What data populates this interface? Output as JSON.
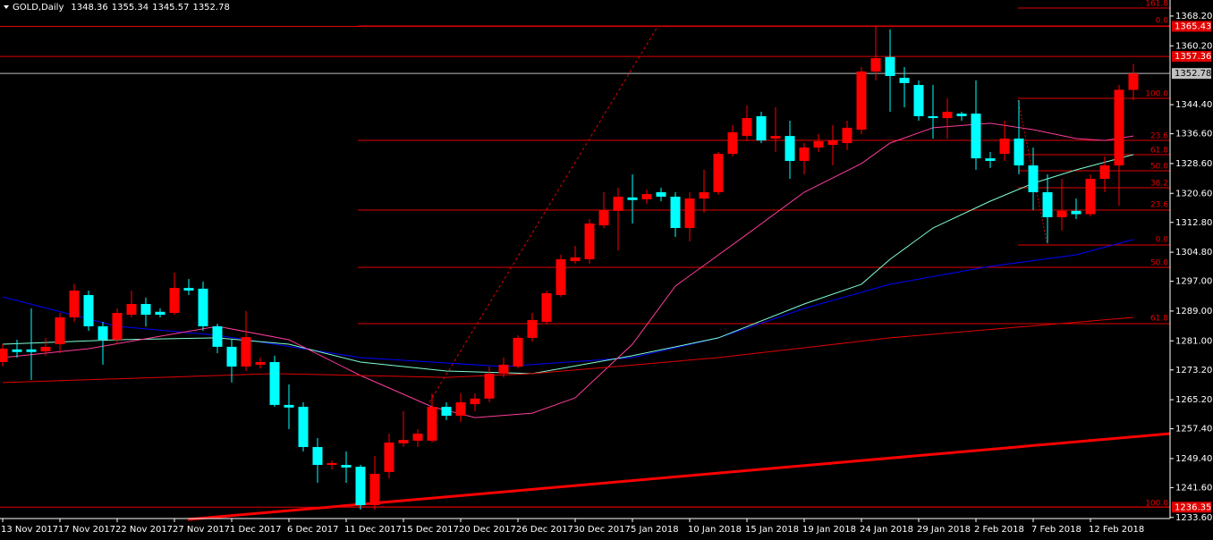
{
  "chart_data": {
    "type": "candlestick",
    "title": "GOLD,Daily",
    "categories": [
      "13 Nov 2017",
      null,
      null,
      null,
      "17 Nov 2017",
      null,
      null,
      null,
      "22 Nov 2017",
      null,
      null,
      null,
      "27 Nov 2017",
      null,
      null,
      null,
      "1 Dec 2017",
      null,
      null,
      null,
      "6 Dec 2017",
      null,
      null,
      null,
      "11 Dec 2017",
      null,
      null,
      null,
      "15 Dec 2017",
      null,
      null,
      null,
      "20 Dec 2017",
      null,
      null,
      null,
      "26 Dec 2017",
      null,
      null,
      null,
      "30 Dec 2017",
      null,
      null,
      null,
      "5 Jan 2018",
      null,
      null,
      null,
      "10 Jan 2018",
      null,
      null,
      null,
      "15 Jan 2018",
      null,
      null,
      null,
      "19 Jan 2018",
      null,
      null,
      null,
      "24 Jan 2018",
      null,
      null,
      null,
      "29 Jan 2018",
      null,
      null,
      null,
      "2 Feb 2018",
      null,
      null,
      null,
      "7 Feb 2018",
      null,
      null,
      null,
      "12 Feb 2018",
      null,
      null,
      null
    ],
    "candles": [
      [
        1275.3,
        1280.1,
        1274.1,
        1278.9
      ],
      [
        1278.7,
        1281.3,
        1276.5,
        1278.0
      ],
      [
        1278.7,
        1289.7,
        1270.5,
        1278.0
      ],
      [
        1278.2,
        1281.8,
        1277.0,
        1279.4
      ],
      [
        1280.1,
        1288.5,
        1277.7,
        1287.3
      ],
      [
        1287.3,
        1296.2,
        1286.1,
        1294.5
      ],
      [
        1293.3,
        1294.5,
        1283.7,
        1284.9
      ],
      [
        1284.9,
        1286.1,
        1274.6,
        1281.3
      ],
      [
        1281.3,
        1289.7,
        1280.1,
        1288.5
      ],
      [
        1288.0,
        1294.5,
        1287.3,
        1290.9
      ],
      [
        1290.9,
        1292.6,
        1284.9,
        1288.0
      ],
      [
        1288.8,
        1289.7,
        1287.3,
        1288.0
      ],
      [
        1288.5,
        1299.3,
        1288.0,
        1295.2
      ],
      [
        1295.2,
        1297.6,
        1293.3,
        1294.5
      ],
      [
        1295.0,
        1296.9,
        1283.7,
        1284.9
      ],
      [
        1284.9,
        1285.6,
        1277.7,
        1279.4
      ],
      [
        1279.4,
        1281.3,
        1269.8,
        1274.1
      ],
      [
        1274.1,
        1289.0,
        1272.9,
        1282.0
      ],
      [
        1274.6,
        1276.5,
        1273.6,
        1275.3
      ],
      [
        1275.3,
        1277.0,
        1263.3,
        1263.8
      ],
      [
        1263.8,
        1269.3,
        1257.3,
        1263.1
      ],
      [
        1263.3,
        1264.5,
        1251.3,
        1252.5
      ],
      [
        1252.5,
        1254.9,
        1242.9,
        1247.7
      ],
      [
        1247.7,
        1248.9,
        1246.5,
        1248.2
      ],
      [
        1247.7,
        1251.3,
        1242.9,
        1247.0
      ],
      [
        1247.2,
        1247.7,
        1235.7,
        1236.9
      ],
      [
        1236.9,
        1250.1,
        1235.7,
        1245.3
      ],
      [
        1245.8,
        1256.1,
        1244.1,
        1253.7
      ],
      [
        1253.5,
        1262.1,
        1252.5,
        1254.4
      ],
      [
        1254.2,
        1257.3,
        1252.5,
        1256.1
      ],
      [
        1254.2,
        1266.9,
        1253.7,
        1263.3
      ],
      [
        1263.3,
        1264.5,
        1259.7,
        1260.9
      ],
      [
        1260.9,
        1266.9,
        1259.2,
        1264.5
      ],
      [
        1264.0,
        1266.9,
        1262.1,
        1265.5
      ],
      [
        1265.5,
        1274.1,
        1264.5,
        1272.2
      ],
      [
        1272.2,
        1276.5,
        1271.2,
        1274.6
      ],
      [
        1274.1,
        1282.5,
        1273.6,
        1281.8
      ],
      [
        1281.8,
        1288.5,
        1280.8,
        1286.6
      ],
      [
        1286.1,
        1294.5,
        1285.6,
        1293.8
      ],
      [
        1293.3,
        1304.1,
        1292.8,
        1302.9
      ],
      [
        1302.4,
        1306.5,
        1301.7,
        1303.4
      ],
      [
        1302.9,
        1313.7,
        1301.7,
        1312.5
      ],
      [
        1312.0,
        1320.9,
        1311.3,
        1316.1
      ],
      [
        1315.9,
        1322.1,
        1305.3,
        1319.7
      ],
      [
        1319.5,
        1325.7,
        1312.5,
        1318.8
      ],
      [
        1319.0,
        1321.6,
        1317.8,
        1320.4
      ],
      [
        1320.9,
        1322.1,
        1318.5,
        1319.7
      ],
      [
        1319.7,
        1320.9,
        1308.9,
        1311.3
      ],
      [
        1311.3,
        1320.9,
        1307.7,
        1319.2
      ],
      [
        1319.2,
        1326.9,
        1315.4,
        1320.9
      ],
      [
        1320.9,
        1331.7,
        1320.2,
        1331.2
      ],
      [
        1331.2,
        1338.9,
        1330.5,
        1337.0
      ],
      [
        1336.0,
        1344.2,
        1334.6,
        1340.8
      ],
      [
        1341.3,
        1342.5,
        1334.1,
        1334.8
      ],
      [
        1335.3,
        1343.7,
        1331.7,
        1336.0
      ],
      [
        1336.0,
        1340.1,
        1324.5,
        1329.3
      ],
      [
        1329.3,
        1334.1,
        1325.7,
        1332.9
      ],
      [
        1332.9,
        1336.5,
        1331.7,
        1334.6
      ],
      [
        1333.6,
        1338.9,
        1328.1,
        1334.8
      ],
      [
        1334.1,
        1340.1,
        1332.2,
        1338.2
      ],
      [
        1337.7,
        1354.5,
        1336.5,
        1353.3
      ],
      [
        1353.3,
        1365.4,
        1350.9,
        1356.9
      ],
      [
        1357.2,
        1364.6,
        1342.5,
        1352.1
      ],
      [
        1351.6,
        1354.5,
        1343.7,
        1350.2
      ],
      [
        1349.7,
        1350.9,
        1340.1,
        1341.3
      ],
      [
        1341.3,
        1349.7,
        1335.3,
        1340.8
      ],
      [
        1340.8,
        1346.1,
        1335.3,
        1342.5
      ],
      [
        1342.0,
        1342.5,
        1340.1,
        1341.3
      ],
      [
        1342.0,
        1350.9,
        1326.9,
        1330.0
      ],
      [
        1330.0,
        1331.7,
        1327.4,
        1329.3
      ],
      [
        1331.2,
        1340.1,
        1329.3,
        1335.3
      ],
      [
        1335.3,
        1345.6,
        1325.7,
        1328.1
      ],
      [
        1328.1,
        1332.9,
        1316.1,
        1320.9
      ],
      [
        1320.9,
        1325.7,
        1307.2,
        1314.2
      ],
      [
        1314.2,
        1324.5,
        1310.6,
        1315.9
      ],
      [
        1315.9,
        1319.2,
        1313.7,
        1315.0
      ],
      [
        1315.0,
        1325.7,
        1314.4,
        1324.5
      ],
      [
        1324.5,
        1330.5,
        1320.9,
        1328.1
      ],
      [
        1328.1,
        1349.7,
        1317.3,
        1348.4
      ],
      [
        1348.36,
        1355.34,
        1345.57,
        1352.78
      ]
    ],
    "up_color": "#ff0000",
    "down_color": "#00ffff",
    "ma_series": [
      {
        "color": "#0000ff",
        "x": [
          0,
          8,
          15,
          25,
          35,
          44,
          50,
          56,
          62,
          69,
          75,
          79
        ],
        "values": [
          1292.8,
          1284.9,
          1282.5,
          1276.5,
          1274.1,
          1276.5,
          1281.8,
          1289.7,
          1296.2,
          1301.0,
          1304.1,
          1308.2
        ]
      },
      {
        "color": "#7fffd4",
        "x": [
          0,
          8,
          15,
          20,
          25,
          31,
          37,
          44,
          50,
          56,
          60,
          62,
          65,
          69,
          72,
          75,
          79
        ],
        "values": [
          1280.1,
          1281.3,
          1281.8,
          1280.1,
          1275.3,
          1272.9,
          1272.2,
          1277.0,
          1281.8,
          1290.9,
          1296.2,
          1302.9,
          1311.3,
          1318.5,
          1323.3,
          1326.9,
          1331.0
        ]
      },
      {
        "color": "#ff3c9a",
        "x": [
          0,
          6,
          15,
          20,
          25,
          30,
          33,
          37,
          40,
          44,
          47,
          52,
          56,
          60,
          62,
          65,
          69,
          72,
          75,
          77,
          79
        ],
        "values": [
          1276.5,
          1278.9,
          1284.9,
          1281.3,
          1271.7,
          1263.3,
          1260.4,
          1261.6,
          1265.7,
          1280.1,
          1295.7,
          1309.6,
          1320.9,
          1328.6,
          1334.1,
          1338.2,
          1339.4,
          1337.7,
          1335.3,
          1334.8,
          1336.0
        ]
      },
      {
        "color": "#e00000",
        "x": [
          0,
          19,
          31,
          37,
          50,
          62,
          79
        ],
        "values": [
          1269.8,
          1272.2,
          1271.2,
          1272.2,
          1276.5,
          1281.8,
          1287.3
        ]
      }
    ],
    "price_lines": [
      {
        "value": 1365.43,
        "color": "#e00000"
      },
      {
        "value": 1357.36,
        "color": "#e00000"
      },
      {
        "value": 1352.78,
        "color": "#c0c0c0"
      },
      {
        "value": 1236.35,
        "color": "#e00000"
      }
    ],
    "fib_labels": [
      "161.8",
      "0.0",
      "100.0",
      "23.6",
      "61.8",
      "50.0",
      "38.2",
      "23.6",
      "0.0",
      "50.0",
      "61.8",
      "100.0"
    ],
    "ylim": [
      1233.3,
      1372.5
    ],
    "yticks": [
      {
        "value": 1368.2,
        "label": "1368.20"
      },
      {
        "value": 1360.2,
        "label": "1360.20"
      },
      {
        "value": 1344.4,
        "label": "1344.40"
      },
      {
        "value": 1336.6,
        "label": "1336.60"
      },
      {
        "value": 1328.6,
        "label": "1328.60"
      },
      {
        "value": 1320.6,
        "label": "1320.60"
      },
      {
        "value": 1312.8,
        "label": "1312.80"
      },
      {
        "value": 1304.8,
        "label": "1304.80"
      },
      {
        "value": 1297.0,
        "label": "1297.00"
      },
      {
        "value": 1289.0,
        "label": "1289.00"
      },
      {
        "value": 1281.0,
        "label": "1281.00"
      },
      {
        "value": 1273.2,
        "label": "1273.20"
      },
      {
        "value": 1265.2,
        "label": "1265.20"
      },
      {
        "value": 1257.4,
        "label": "1257.40"
      },
      {
        "value": 1249.4,
        "label": "1249.40"
      },
      {
        "value": 1241.6,
        "label": "1241.60"
      },
      {
        "value": 1233.6,
        "label": "1233.60"
      }
    ]
  }
}
